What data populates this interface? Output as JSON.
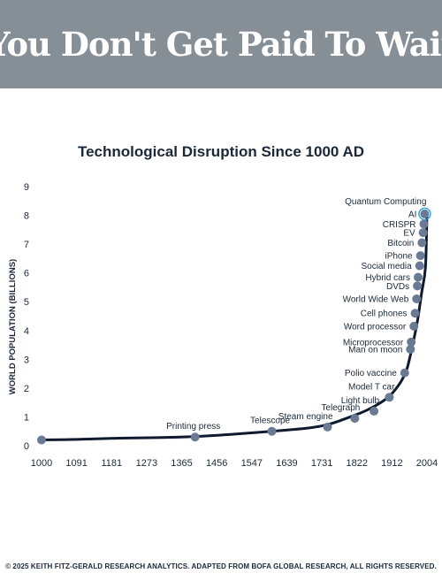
{
  "header": {
    "title": "You Don't Get Paid To Wait"
  },
  "footer": {
    "text": "© 2025 KEITH FITZ-GERALD RESEARCH ANALYTICS. ADAPTED FROM BOFA GLOBAL RESEARCH, ALL RIGHTS RESERVED."
  },
  "colors": {
    "banner": "#878f96",
    "line": "#0f1a2e",
    "marker": "#6b7a94",
    "highlight": "#3aa0d8",
    "text": "#1b2838"
  },
  "chart_data": {
    "type": "line",
    "title": "Technological Disruption Since 1000 AD",
    "xlabel": "",
    "ylabel": "WORLD POPULATION (BILLIONS)",
    "xlim": [
      1000,
      2004
    ],
    "ylim": [
      0,
      9
    ],
    "grid": false,
    "x_ticks": [
      "1000",
      "1091",
      "1181",
      "1273",
      "1365",
      "1456",
      "1547",
      "1639",
      "1731",
      "1822",
      "1912",
      "2004"
    ],
    "y_ticks": [
      "0",
      "1",
      "2",
      "3",
      "4",
      "5",
      "6",
      "7",
      "8",
      "9"
    ],
    "curve": {
      "x": [
        1000,
        1100,
        1200,
        1300,
        1400,
        1500,
        1600,
        1700,
        1750,
        1800,
        1850,
        1900,
        1930,
        1950,
        1960,
        1970,
        1980,
        1990,
        2000,
        2004
      ],
      "y": [
        0.2,
        0.22,
        0.26,
        0.28,
        0.32,
        0.4,
        0.5,
        0.62,
        0.75,
        0.98,
        1.25,
        1.65,
        2.1,
        2.6,
        3.1,
        3.7,
        4.4,
        5.3,
        6.2,
        8.1
      ]
    },
    "points": [
      {
        "label": "",
        "x": 1000,
        "y": 0.2
      },
      {
        "label": "Printing press",
        "x": 1400,
        "y": 0.3
      },
      {
        "label": "Telescope",
        "x": 1600,
        "y": 0.5
      },
      {
        "label": "Steam engine",
        "x": 1745,
        "y": 0.65
      },
      {
        "label": "Telegraph",
        "x": 1816,
        "y": 0.95
      },
      {
        "label": "Light bulb",
        "x": 1866,
        "y": 1.2
      },
      {
        "label": "Model T car",
        "x": 1906,
        "y": 1.68
      },
      {
        "label": "Polio vaccine",
        "x": 1946,
        "y": 2.53
      },
      {
        "label": "Man on moon",
        "x": 1961,
        "y": 3.35
      },
      {
        "label": "Microprocessor",
        "x": 1963,
        "y": 3.6
      },
      {
        "label": "Word processor",
        "x": 1970,
        "y": 4.15
      },
      {
        "label": "Cell phones",
        "x": 1973,
        "y": 4.6
      },
      {
        "label": "World Wide Web",
        "x": 1977,
        "y": 5.1
      },
      {
        "label": "DVDs",
        "x": 1979,
        "y": 5.55
      },
      {
        "label": "Hybrid cars",
        "x": 1981,
        "y": 5.85
      },
      {
        "label": "Social media",
        "x": 1985,
        "y": 6.25
      },
      {
        "label": "iPhone",
        "x": 1987,
        "y": 6.6
      },
      {
        "label": "Bitcoin",
        "x": 1991,
        "y": 7.05
      },
      {
        "label": "EV",
        "x": 1994,
        "y": 7.4
      },
      {
        "label": "CRISPR",
        "x": 1996,
        "y": 7.7
      },
      {
        "label": "AI",
        "x": 1998,
        "y": 8.05
      },
      {
        "label": "Quantum Computing",
        "x": 1998,
        "y": 8.05
      }
    ]
  }
}
